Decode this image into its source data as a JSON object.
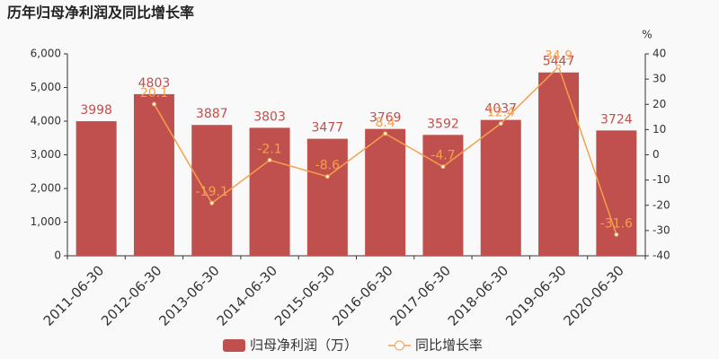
{
  "chart_data": {
    "type": "bar_line",
    "title": "历年归母净利润及同比增长率",
    "categories": [
      "2011-06-30",
      "2012-06-30",
      "2013-06-30",
      "2014-06-30",
      "2015-06-30",
      "2016-06-30",
      "2017-06-30",
      "2018-06-30",
      "2019-06-30",
      "2020-06-30"
    ],
    "series": [
      {
        "name": "归母净利润（万）",
        "type": "bar",
        "color": "#c0504d",
        "values": [
          3998,
          4803,
          3887,
          3803,
          3477,
          3769,
          3592,
          4037,
          5447,
          3724
        ]
      },
      {
        "name": "同比增长率",
        "type": "line",
        "axis": "y2",
        "color": "#f5a04b",
        "values": [
          null,
          20.1,
          -19.1,
          -2.1,
          -8.6,
          8.4,
          -4.7,
          12.4,
          34.9,
          -31.6
        ]
      }
    ],
    "ylim": [
      0,
      6000
    ],
    "yticks": [
      0,
      {
        "value": 1000,
        "label": "1,000"
      },
      {
        "value": 2000,
        "label": "2,000"
      },
      {
        "value": 3000,
        "label": "3,000"
      },
      {
        "value": 4000,
        "label": "4,000"
      },
      {
        "value": 5000,
        "label": "5,000"
      },
      {
        "value": 6000,
        "label": "6,000"
      }
    ],
    "y2label": "%",
    "y2lim": [
      -40,
      40
    ],
    "y2ticks": [
      -40,
      -30,
      -20,
      -10,
      0,
      10,
      20,
      30,
      40
    ]
  }
}
